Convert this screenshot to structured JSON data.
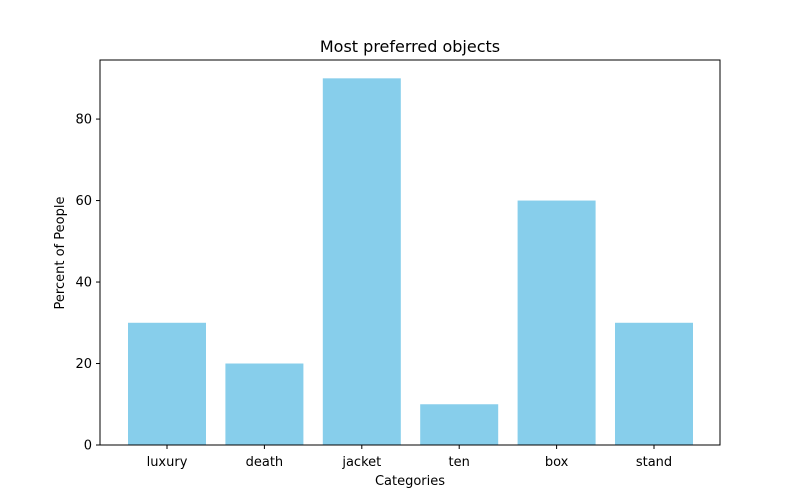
{
  "chart_data": {
    "type": "bar",
    "title": "Most preferred objects",
    "xlabel": "Categories",
    "ylabel": "Percent of People",
    "categories": [
      "luxury",
      "death",
      "jacket",
      "ten",
      "box",
      "stand"
    ],
    "values": [
      30,
      20,
      90,
      10,
      60,
      30
    ],
    "ylim": [
      0,
      94.5
    ],
    "yticks": [
      0,
      20,
      40,
      60,
      80
    ],
    "bar_color": "#87ceeb",
    "grid": false,
    "legend": "none"
  }
}
